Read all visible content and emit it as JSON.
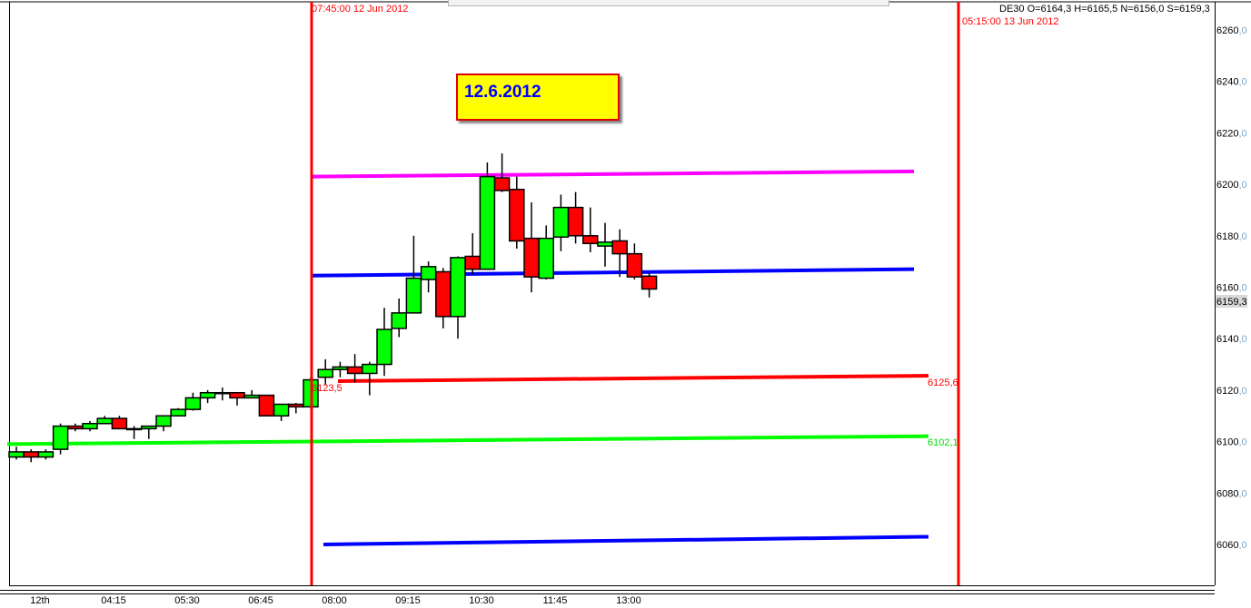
{
  "header": {
    "left_marker": "07:45:00 12 Jun 2012",
    "right_marker": "05:15:00 13 Jun 2012",
    "quote": "DE30 O=6164,3 H=6165,5 N=6156,0 S=6159,3"
  },
  "annotation": {
    "text": "12.6.2012"
  },
  "colors": {
    "up": "#00ff00",
    "down": "#ff0000",
    "marker": "#ff0000",
    "magenta": "#ff00ff",
    "blue": "#0000ff",
    "green_level": "#00ff00",
    "red_level": "#ff0000"
  },
  "chart_data": {
    "type": "candlestick",
    "symbol": "DE30",
    "ylim": [
      6044,
      6270
    ],
    "yticks": [
      "6260,0",
      "6240,0",
      "6220,0",
      "6200,0",
      "6180,0",
      "6160,0",
      "6140,0",
      "6120,0",
      "6100,0",
      "6080,0",
      "6060,0"
    ],
    "ytick_values": [
      6260,
      6240,
      6220,
      6200,
      6180,
      6160,
      6140,
      6120,
      6100,
      6080,
      6060
    ],
    "current_price_label": "6159,3",
    "current_price": 6159.3,
    "xticks": [
      "12th",
      "04:15",
      "05:30",
      "06:45",
      "08:00",
      "09:15",
      "10:30",
      "11:45",
      "13:00"
    ],
    "candles": [
      [
        6094,
        6098,
        6093,
        6096
      ],
      [
        6096,
        6097,
        6092,
        6094
      ],
      [
        6094,
        6097,
        6093,
        6096
      ],
      [
        6097,
        6107,
        6095,
        6106
      ],
      [
        6106,
        6107,
        6104,
        6105
      ],
      [
        6105,
        6108,
        6104,
        6107
      ],
      [
        6107,
        6110,
        6107,
        6109
      ],
      [
        6109,
        6110,
        6105,
        6105
      ],
      [
        6105,
        6106,
        6101,
        6105
      ],
      [
        6105,
        6106,
        6101,
        6106
      ],
      [
        6106,
        6110,
        6104,
        6110
      ],
      [
        6110,
        6113,
        6110,
        6112.5
      ],
      [
        6112.5,
        6119,
        6112,
        6117
      ],
      [
        6117,
        6120,
        6115,
        6119
      ],
      [
        6119,
        6121,
        6116,
        6119
      ],
      [
        6119,
        6119,
        6114,
        6117
      ],
      [
        6117,
        6120,
        6117,
        6118
      ],
      [
        6118,
        6118,
        6110,
        6110
      ],
      [
        6110,
        6114.5,
        6108,
        6114.5
      ],
      [
        6114.5,
        6115,
        6111,
        6113.5
      ],
      [
        6113.5,
        6125,
        6113,
        6124
      ],
      [
        6125,
        6132,
        6122,
        6128
      ],
      [
        6128,
        6131,
        6125,
        6129
      ],
      [
        6129,
        6134,
        6123,
        6126.5
      ],
      [
        6126.5,
        6131,
        6118,
        6130
      ],
      [
        6130,
        6152,
        6125.5,
        6143.6
      ],
      [
        6144,
        6155.6,
        6140.6,
        6150
      ],
      [
        6150,
        6180,
        6150,
        6163.5
      ],
      [
        6163,
        6170,
        6158,
        6168
      ],
      [
        6166,
        6167.5,
        6144,
        6148.6
      ],
      [
        6148.6,
        6172,
        6140,
        6171.5
      ],
      [
        6172,
        6181,
        6165,
        6167
      ],
      [
        6167,
        6208.5,
        6167,
        6203
      ],
      [
        6202.5,
        6212,
        6197,
        6197.6
      ],
      [
        6198,
        6203,
        6175,
        6178
      ],
      [
        6179,
        6193,
        6158,
        6164
      ],
      [
        6163.5,
        6184,
        6163,
        6179
      ],
      [
        6179.5,
        6196,
        6174,
        6191
      ],
      [
        6191,
        6197,
        6177,
        6180
      ],
      [
        6180,
        6191,
        6173.6,
        6177
      ],
      [
        6176,
        6185,
        6168,
        6177.5
      ],
      [
        6178,
        6182.5,
        6164,
        6173
      ],
      [
        6173,
        6177,
        6163,
        6164
      ],
      [
        6164.3,
        6165.5,
        6156,
        6159.3
      ]
    ],
    "candle_format": [
      "open",
      "high",
      "low",
      "close"
    ],
    "levels": [
      {
        "color": "#ff00ff",
        "start": 6203,
        "end": 6205
      },
      {
        "color": "#0000ff",
        "start": 6164.5,
        "end": 6167
      },
      {
        "color": "#ff0000",
        "start": 6123.5,
        "end": 6125.6,
        "start_label": "6123,5",
        "end_label": "6125,6"
      },
      {
        "color": "#00ff00",
        "start": 6099,
        "end": 6102.1,
        "end_label": "6102,1"
      },
      {
        "color": "#0000ff",
        "start": 6060,
        "end": 6063
      }
    ]
  }
}
